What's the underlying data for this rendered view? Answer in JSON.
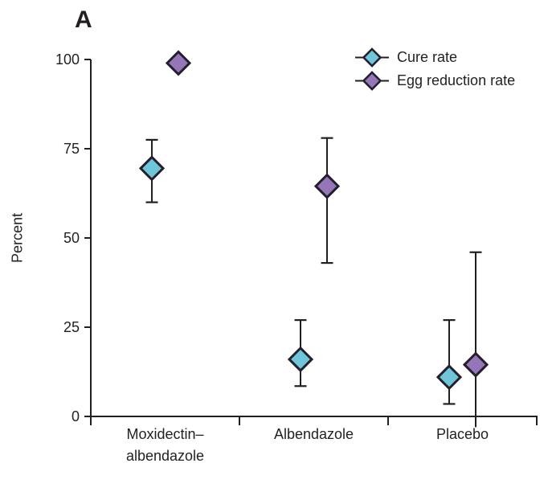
{
  "panel": {
    "label": "A"
  },
  "chart_data": {
    "type": "scatter",
    "title": "",
    "ylabel": "Percent",
    "xlabel": "",
    "ylim": [
      0,
      100
    ],
    "yticks": [
      0,
      25,
      50,
      75,
      100
    ],
    "grid": false,
    "legend_position": "top-right-inside",
    "marker_shape": "diamond",
    "error_bars": true,
    "categories": [
      "Moxidectin–albendazole",
      "Albendazole",
      "Placebo"
    ],
    "category_display": [
      [
        "Moxidectin–",
        "albendazole"
      ],
      [
        "Albendazole",
        ""
      ],
      [
        "Placebo",
        ""
      ]
    ],
    "series": [
      {
        "name": "Cure rate",
        "color": "#6FC6D9",
        "values": [
          69.5,
          16,
          11
        ],
        "ci_low": [
          60,
          8.5,
          3.5
        ],
        "ci_high": [
          77.5,
          27,
          27
        ]
      },
      {
        "name": "Egg reduction rate",
        "color": "#9577B9",
        "values": [
          99,
          64.5,
          14.5
        ],
        "ci_low": [
          null,
          43,
          -3
        ],
        "ci_high": [
          null,
          78,
          46
        ]
      }
    ]
  },
  "colors": {
    "axis": "#231F20",
    "text": "#231F20",
    "marker_outline": "#241F2D",
    "background": "#FFFFFF"
  }
}
